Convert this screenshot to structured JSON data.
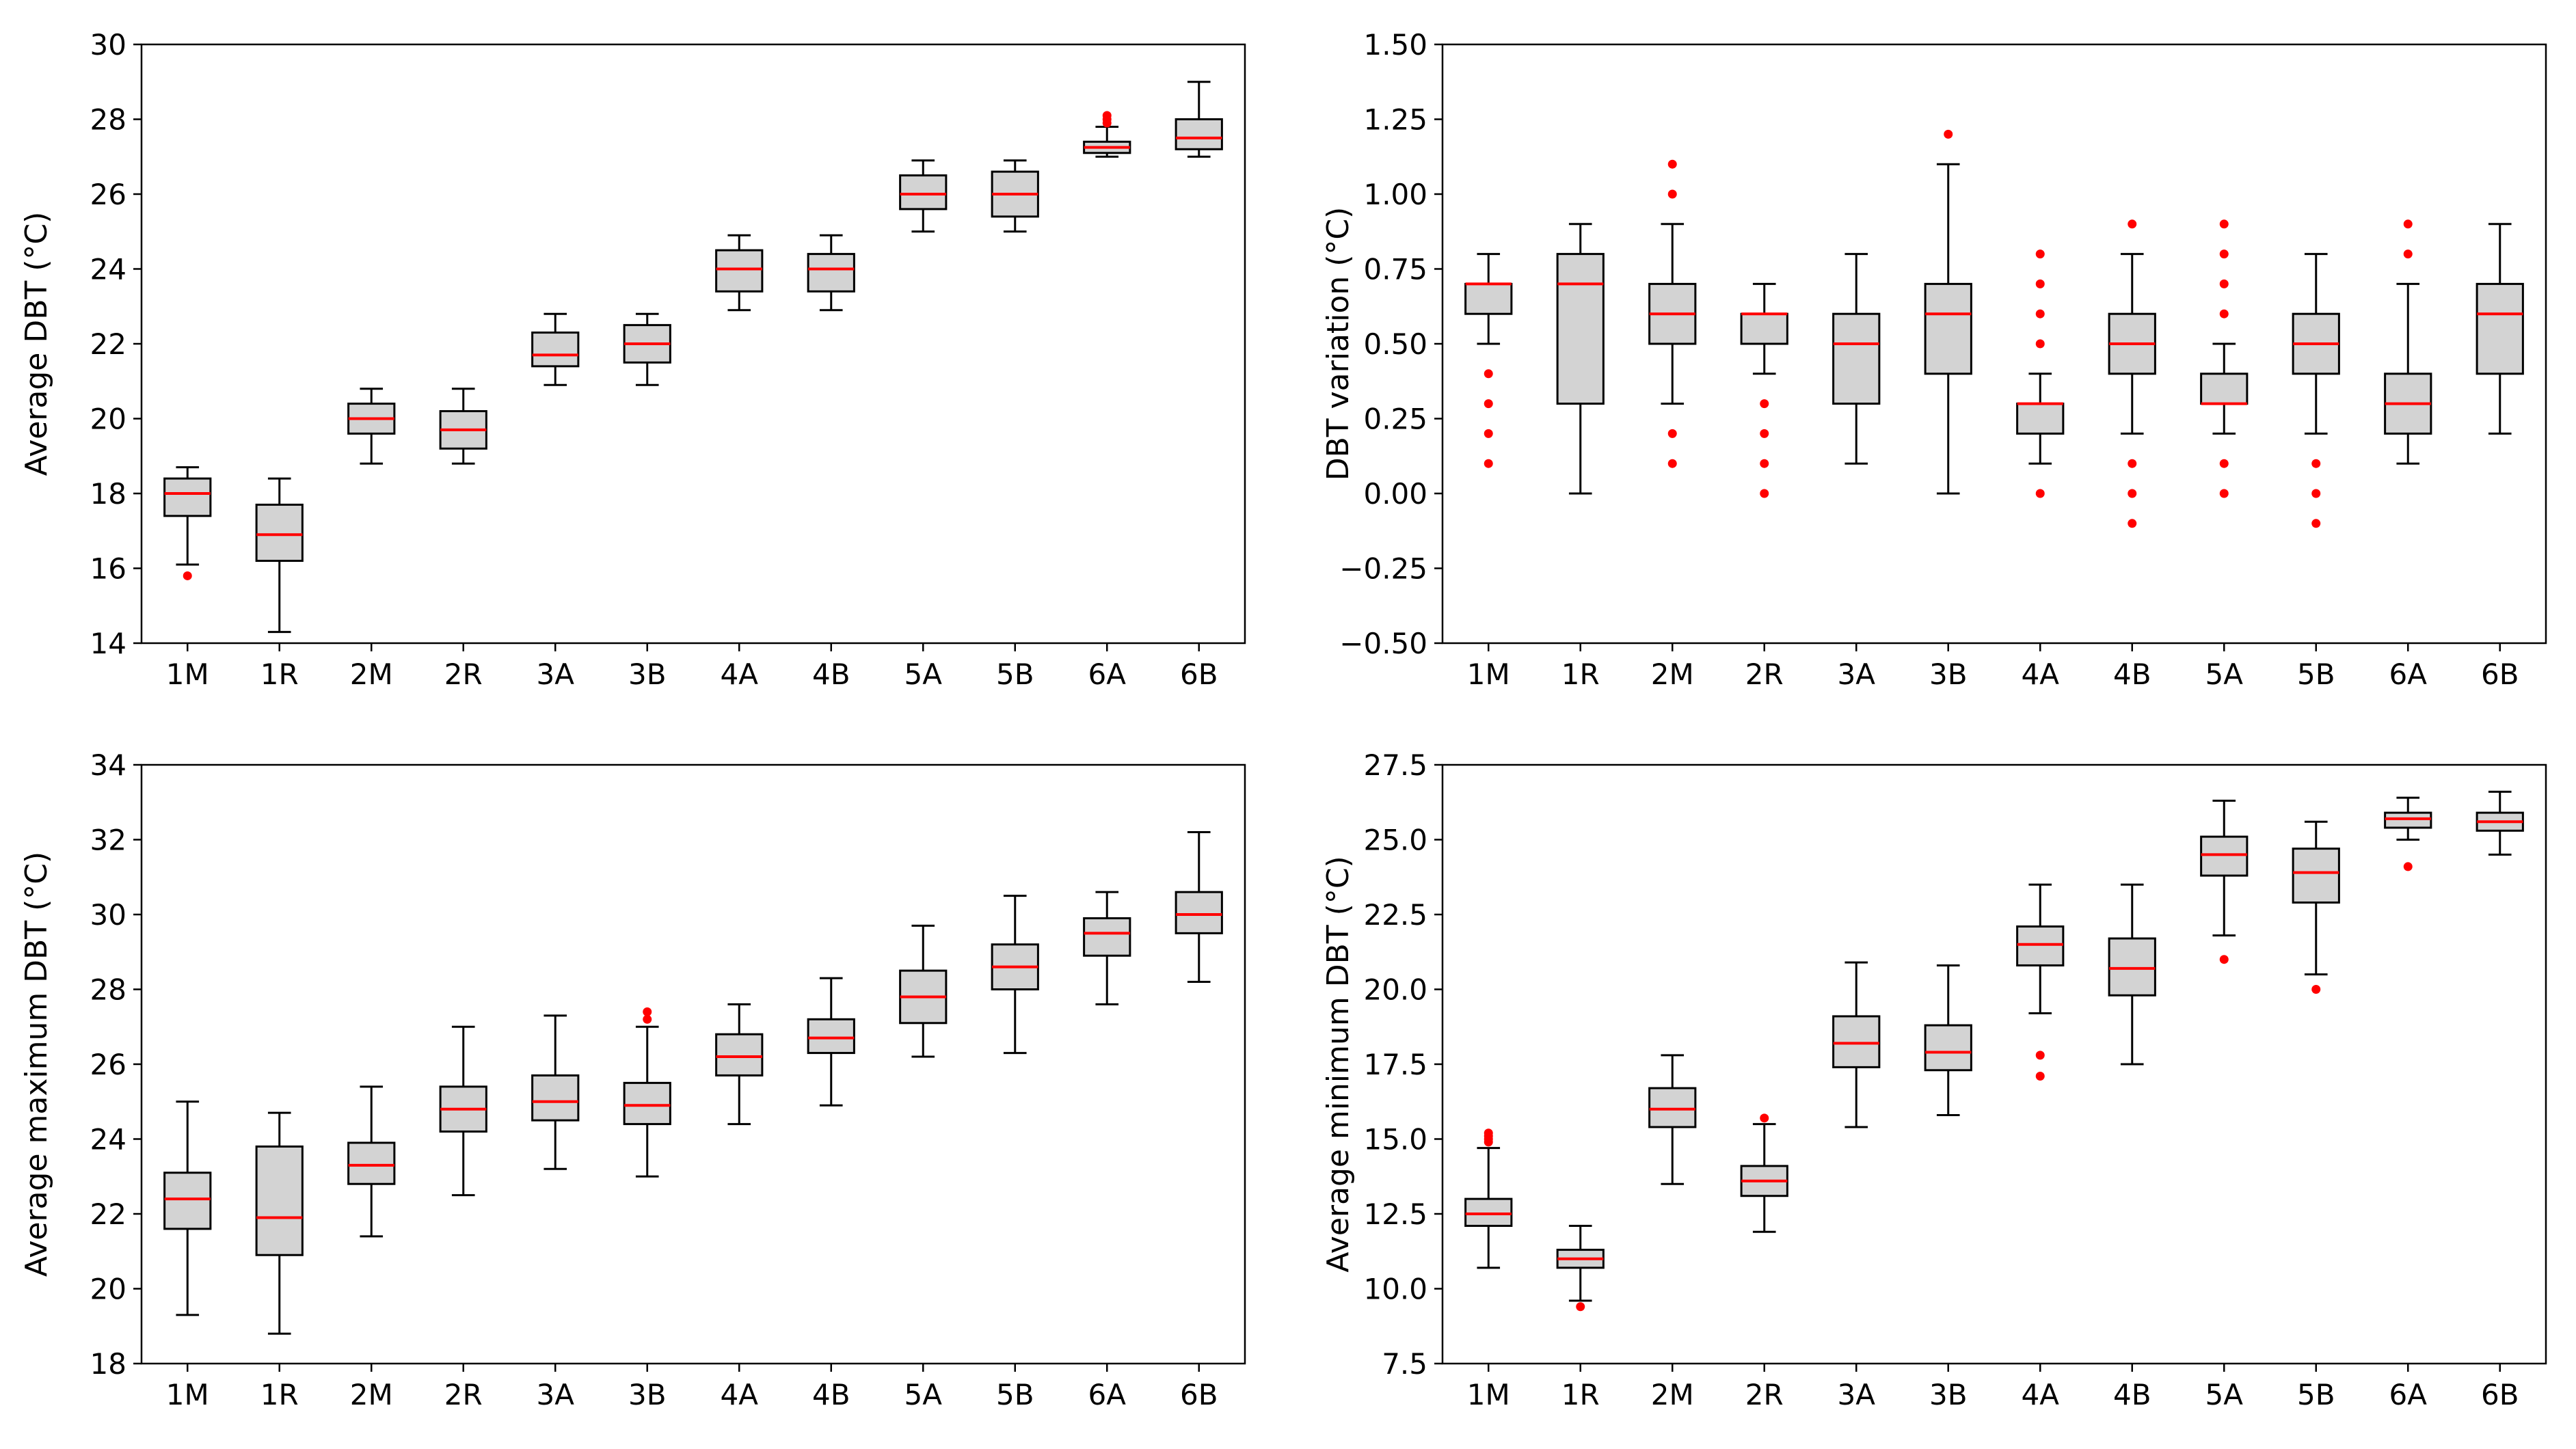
{
  "figure": {
    "background": "#ffffff",
    "box_fill": "#d3d3d3",
    "median_color": "#ff0000",
    "flier_color": "#ff0000"
  },
  "chart_data": [
    {
      "type": "box",
      "ylabel": "Average DBT (°C)",
      "categories": [
        "1M",
        "1R",
        "2M",
        "2R",
        "3A",
        "3B",
        "4A",
        "4B",
        "5A",
        "5B",
        "6A",
        "6B"
      ],
      "ylim": [
        14,
        30
      ],
      "yticks": [
        "14",
        "16",
        "18",
        "20",
        "22",
        "24",
        "26",
        "28",
        "30"
      ],
      "boxes": [
        {
          "whislo": 16.1,
          "q1": 17.4,
          "med": 18.0,
          "q3": 18.4,
          "whishi": 18.7,
          "fliers": [
            15.8
          ]
        },
        {
          "whislo": 14.3,
          "q1": 16.2,
          "med": 16.9,
          "q3": 17.7,
          "whishi": 18.4,
          "fliers": []
        },
        {
          "whislo": 18.8,
          "q1": 19.6,
          "med": 20.0,
          "q3": 20.4,
          "whishi": 20.8,
          "fliers": []
        },
        {
          "whislo": 18.8,
          "q1": 19.2,
          "med": 19.7,
          "q3": 20.2,
          "whishi": 20.8,
          "fliers": []
        },
        {
          "whislo": 20.9,
          "q1": 21.4,
          "med": 21.7,
          "q3": 22.3,
          "whishi": 22.8,
          "fliers": []
        },
        {
          "whislo": 20.9,
          "q1": 21.5,
          "med": 22.0,
          "q3": 22.5,
          "whishi": 22.8,
          "fliers": []
        },
        {
          "whislo": 22.9,
          "q1": 23.4,
          "med": 24.0,
          "q3": 24.5,
          "whishi": 24.9,
          "fliers": []
        },
        {
          "whislo": 22.9,
          "q1": 23.4,
          "med": 24.0,
          "q3": 24.4,
          "whishi": 24.9,
          "fliers": []
        },
        {
          "whislo": 25.0,
          "q1": 25.6,
          "med": 26.0,
          "q3": 26.5,
          "whishi": 26.9,
          "fliers": []
        },
        {
          "whislo": 25.0,
          "q1": 25.4,
          "med": 26.0,
          "q3": 26.6,
          "whishi": 26.9,
          "fliers": []
        },
        {
          "whislo": 27.0,
          "q1": 27.1,
          "med": 27.25,
          "q3": 27.4,
          "whishi": 27.8,
          "fliers": [
            27.9,
            28.0,
            28.1
          ]
        },
        {
          "whislo": 27.0,
          "q1": 27.2,
          "med": 27.5,
          "q3": 28.0,
          "whishi": 29.0,
          "fliers": []
        }
      ]
    },
    {
      "type": "box",
      "ylabel": "DBT variation (°C)",
      "categories": [
        "1M",
        "1R",
        "2M",
        "2R",
        "3A",
        "3B",
        "4A",
        "4B",
        "5A",
        "5B",
        "6A",
        "6B"
      ],
      "ylim": [
        -0.5,
        1.5
      ],
      "yticks": [
        "−0.50",
        "−0.25",
        "0.00",
        "0.25",
        "0.50",
        "0.75",
        "1.00",
        "1.25",
        "1.50"
      ],
      "boxes": [
        {
          "whislo": 0.5,
          "q1": 0.6,
          "med": 0.7,
          "q3": 0.7,
          "whishi": 0.8,
          "fliers": [
            0.4,
            0.3,
            0.2,
            0.1
          ]
        },
        {
          "whislo": 0.0,
          "q1": 0.3,
          "med": 0.7,
          "q3": 0.8,
          "whishi": 0.9,
          "fliers": []
        },
        {
          "whislo": 0.3,
          "q1": 0.5,
          "med": 0.6,
          "q3": 0.7,
          "whishi": 0.9,
          "fliers": [
            1.1,
            1.0,
            0.2,
            0.1
          ]
        },
        {
          "whislo": 0.4,
          "q1": 0.5,
          "med": 0.6,
          "q3": 0.6,
          "whishi": 0.7,
          "fliers": [
            0.3,
            0.2,
            0.1,
            0.0
          ]
        },
        {
          "whislo": 0.1,
          "q1": 0.3,
          "med": 0.5,
          "q3": 0.6,
          "whishi": 0.8,
          "fliers": []
        },
        {
          "whislo": 0.0,
          "q1": 0.4,
          "med": 0.6,
          "q3": 0.7,
          "whishi": 1.1,
          "fliers": [
            1.2
          ]
        },
        {
          "whislo": 0.1,
          "q1": 0.2,
          "med": 0.3,
          "q3": 0.3,
          "whishi": 0.4,
          "fliers": [
            0.5,
            0.6,
            0.7,
            0.8,
            0.0
          ]
        },
        {
          "whislo": 0.2,
          "q1": 0.4,
          "med": 0.5,
          "q3": 0.6,
          "whishi": 0.8,
          "fliers": [
            0.9,
            0.1,
            0.0,
            -0.1
          ]
        },
        {
          "whislo": 0.2,
          "q1": 0.3,
          "med": 0.3,
          "q3": 0.4,
          "whishi": 0.5,
          "fliers": [
            0.6,
            0.7,
            0.8,
            0.9,
            0.1,
            0.0
          ]
        },
        {
          "whislo": 0.2,
          "q1": 0.4,
          "med": 0.5,
          "q3": 0.6,
          "whishi": 0.8,
          "fliers": [
            0.1,
            0.0,
            -0.1
          ]
        },
        {
          "whislo": 0.1,
          "q1": 0.2,
          "med": 0.3,
          "q3": 0.4,
          "whishi": 0.7,
          "fliers": [
            0.8,
            0.9
          ]
        },
        {
          "whislo": 0.2,
          "q1": 0.4,
          "med": 0.6,
          "q3": 0.7,
          "whishi": 0.9,
          "fliers": []
        }
      ]
    },
    {
      "type": "box",
      "ylabel": "Average maximum DBT (°C)",
      "categories": [
        "1M",
        "1R",
        "2M",
        "2R",
        "3A",
        "3B",
        "4A",
        "4B",
        "5A",
        "5B",
        "6A",
        "6B"
      ],
      "ylim": [
        18,
        34
      ],
      "yticks": [
        "18",
        "20",
        "22",
        "24",
        "26",
        "28",
        "30",
        "32",
        "34"
      ],
      "boxes": [
        {
          "whislo": 19.3,
          "q1": 21.6,
          "med": 22.4,
          "q3": 23.1,
          "whishi": 25.0,
          "fliers": []
        },
        {
          "whislo": 18.8,
          "q1": 20.9,
          "med": 21.9,
          "q3": 23.8,
          "whishi": 24.7,
          "fliers": []
        },
        {
          "whislo": 21.4,
          "q1": 22.8,
          "med": 23.3,
          "q3": 23.9,
          "whishi": 25.4,
          "fliers": []
        },
        {
          "whislo": 22.5,
          "q1": 24.2,
          "med": 24.8,
          "q3": 25.4,
          "whishi": 27.0,
          "fliers": []
        },
        {
          "whislo": 23.2,
          "q1": 24.5,
          "med": 25.0,
          "q3": 25.7,
          "whishi": 27.3,
          "fliers": []
        },
        {
          "whislo": 23.0,
          "q1": 24.4,
          "med": 24.9,
          "q3": 25.5,
          "whishi": 27.0,
          "fliers": [
            27.2,
            27.4
          ]
        },
        {
          "whislo": 24.4,
          "q1": 25.7,
          "med": 26.2,
          "q3": 26.8,
          "whishi": 27.6,
          "fliers": []
        },
        {
          "whislo": 24.9,
          "q1": 26.3,
          "med": 26.7,
          "q3": 27.2,
          "whishi": 28.3,
          "fliers": []
        },
        {
          "whislo": 26.2,
          "q1": 27.1,
          "med": 27.8,
          "q3": 28.5,
          "whishi": 29.7,
          "fliers": []
        },
        {
          "whislo": 26.3,
          "q1": 28.0,
          "med": 28.6,
          "q3": 29.2,
          "whishi": 30.5,
          "fliers": []
        },
        {
          "whislo": 27.6,
          "q1": 28.9,
          "med": 29.5,
          "q3": 29.9,
          "whishi": 30.6,
          "fliers": []
        },
        {
          "whislo": 28.2,
          "q1": 29.5,
          "med": 30.0,
          "q3": 30.6,
          "whishi": 32.2,
          "fliers": []
        }
      ]
    },
    {
      "type": "box",
      "ylabel": "Average minimum DBT (°C)",
      "categories": [
        "1M",
        "1R",
        "2M",
        "2R",
        "3A",
        "3B",
        "4A",
        "4B",
        "5A",
        "5B",
        "6A",
        "6B"
      ],
      "ylim": [
        7.5,
        27.5
      ],
      "yticks": [
        "7.5",
        "10.0",
        "12.5",
        "15.0",
        "17.5",
        "20.0",
        "22.5",
        "25.0",
        "27.5"
      ],
      "boxes": [
        {
          "whislo": 10.7,
          "q1": 12.1,
          "med": 12.5,
          "q3": 13.0,
          "whishi": 14.7,
          "fliers": [
            14.9,
            15.0,
            15.1,
            15.2
          ]
        },
        {
          "whislo": 9.6,
          "q1": 10.7,
          "med": 11.0,
          "q3": 11.3,
          "whishi": 12.1,
          "fliers": [
            9.4
          ]
        },
        {
          "whislo": 13.5,
          "q1": 15.4,
          "med": 16.0,
          "q3": 16.7,
          "whishi": 17.8,
          "fliers": []
        },
        {
          "whislo": 11.9,
          "q1": 13.1,
          "med": 13.6,
          "q3": 14.1,
          "whishi": 15.5,
          "fliers": [
            15.7
          ]
        },
        {
          "whislo": 15.4,
          "q1": 17.4,
          "med": 18.2,
          "q3": 19.1,
          "whishi": 20.9,
          "fliers": []
        },
        {
          "whislo": 15.8,
          "q1": 17.3,
          "med": 17.9,
          "q3": 18.8,
          "whishi": 20.8,
          "fliers": []
        },
        {
          "whislo": 19.2,
          "q1": 20.8,
          "med": 21.5,
          "q3": 22.1,
          "whishi": 23.5,
          "fliers": [
            17.8,
            17.1
          ]
        },
        {
          "whislo": 17.5,
          "q1": 19.8,
          "med": 20.7,
          "q3": 21.7,
          "whishi": 23.5,
          "fliers": []
        },
        {
          "whislo": 21.8,
          "q1": 23.8,
          "med": 24.5,
          "q3": 25.1,
          "whishi": 26.3,
          "fliers": [
            21.0
          ]
        },
        {
          "whislo": 20.5,
          "q1": 22.9,
          "med": 23.9,
          "q3": 24.7,
          "whishi": 25.6,
          "fliers": [
            20.0
          ]
        },
        {
          "whislo": 25.0,
          "q1": 25.4,
          "med": 25.7,
          "q3": 25.9,
          "whishi": 26.4,
          "fliers": [
            24.1
          ]
        },
        {
          "whislo": 24.5,
          "q1": 25.3,
          "med": 25.6,
          "q3": 25.9,
          "whishi": 26.6,
          "fliers": []
        }
      ]
    }
  ]
}
